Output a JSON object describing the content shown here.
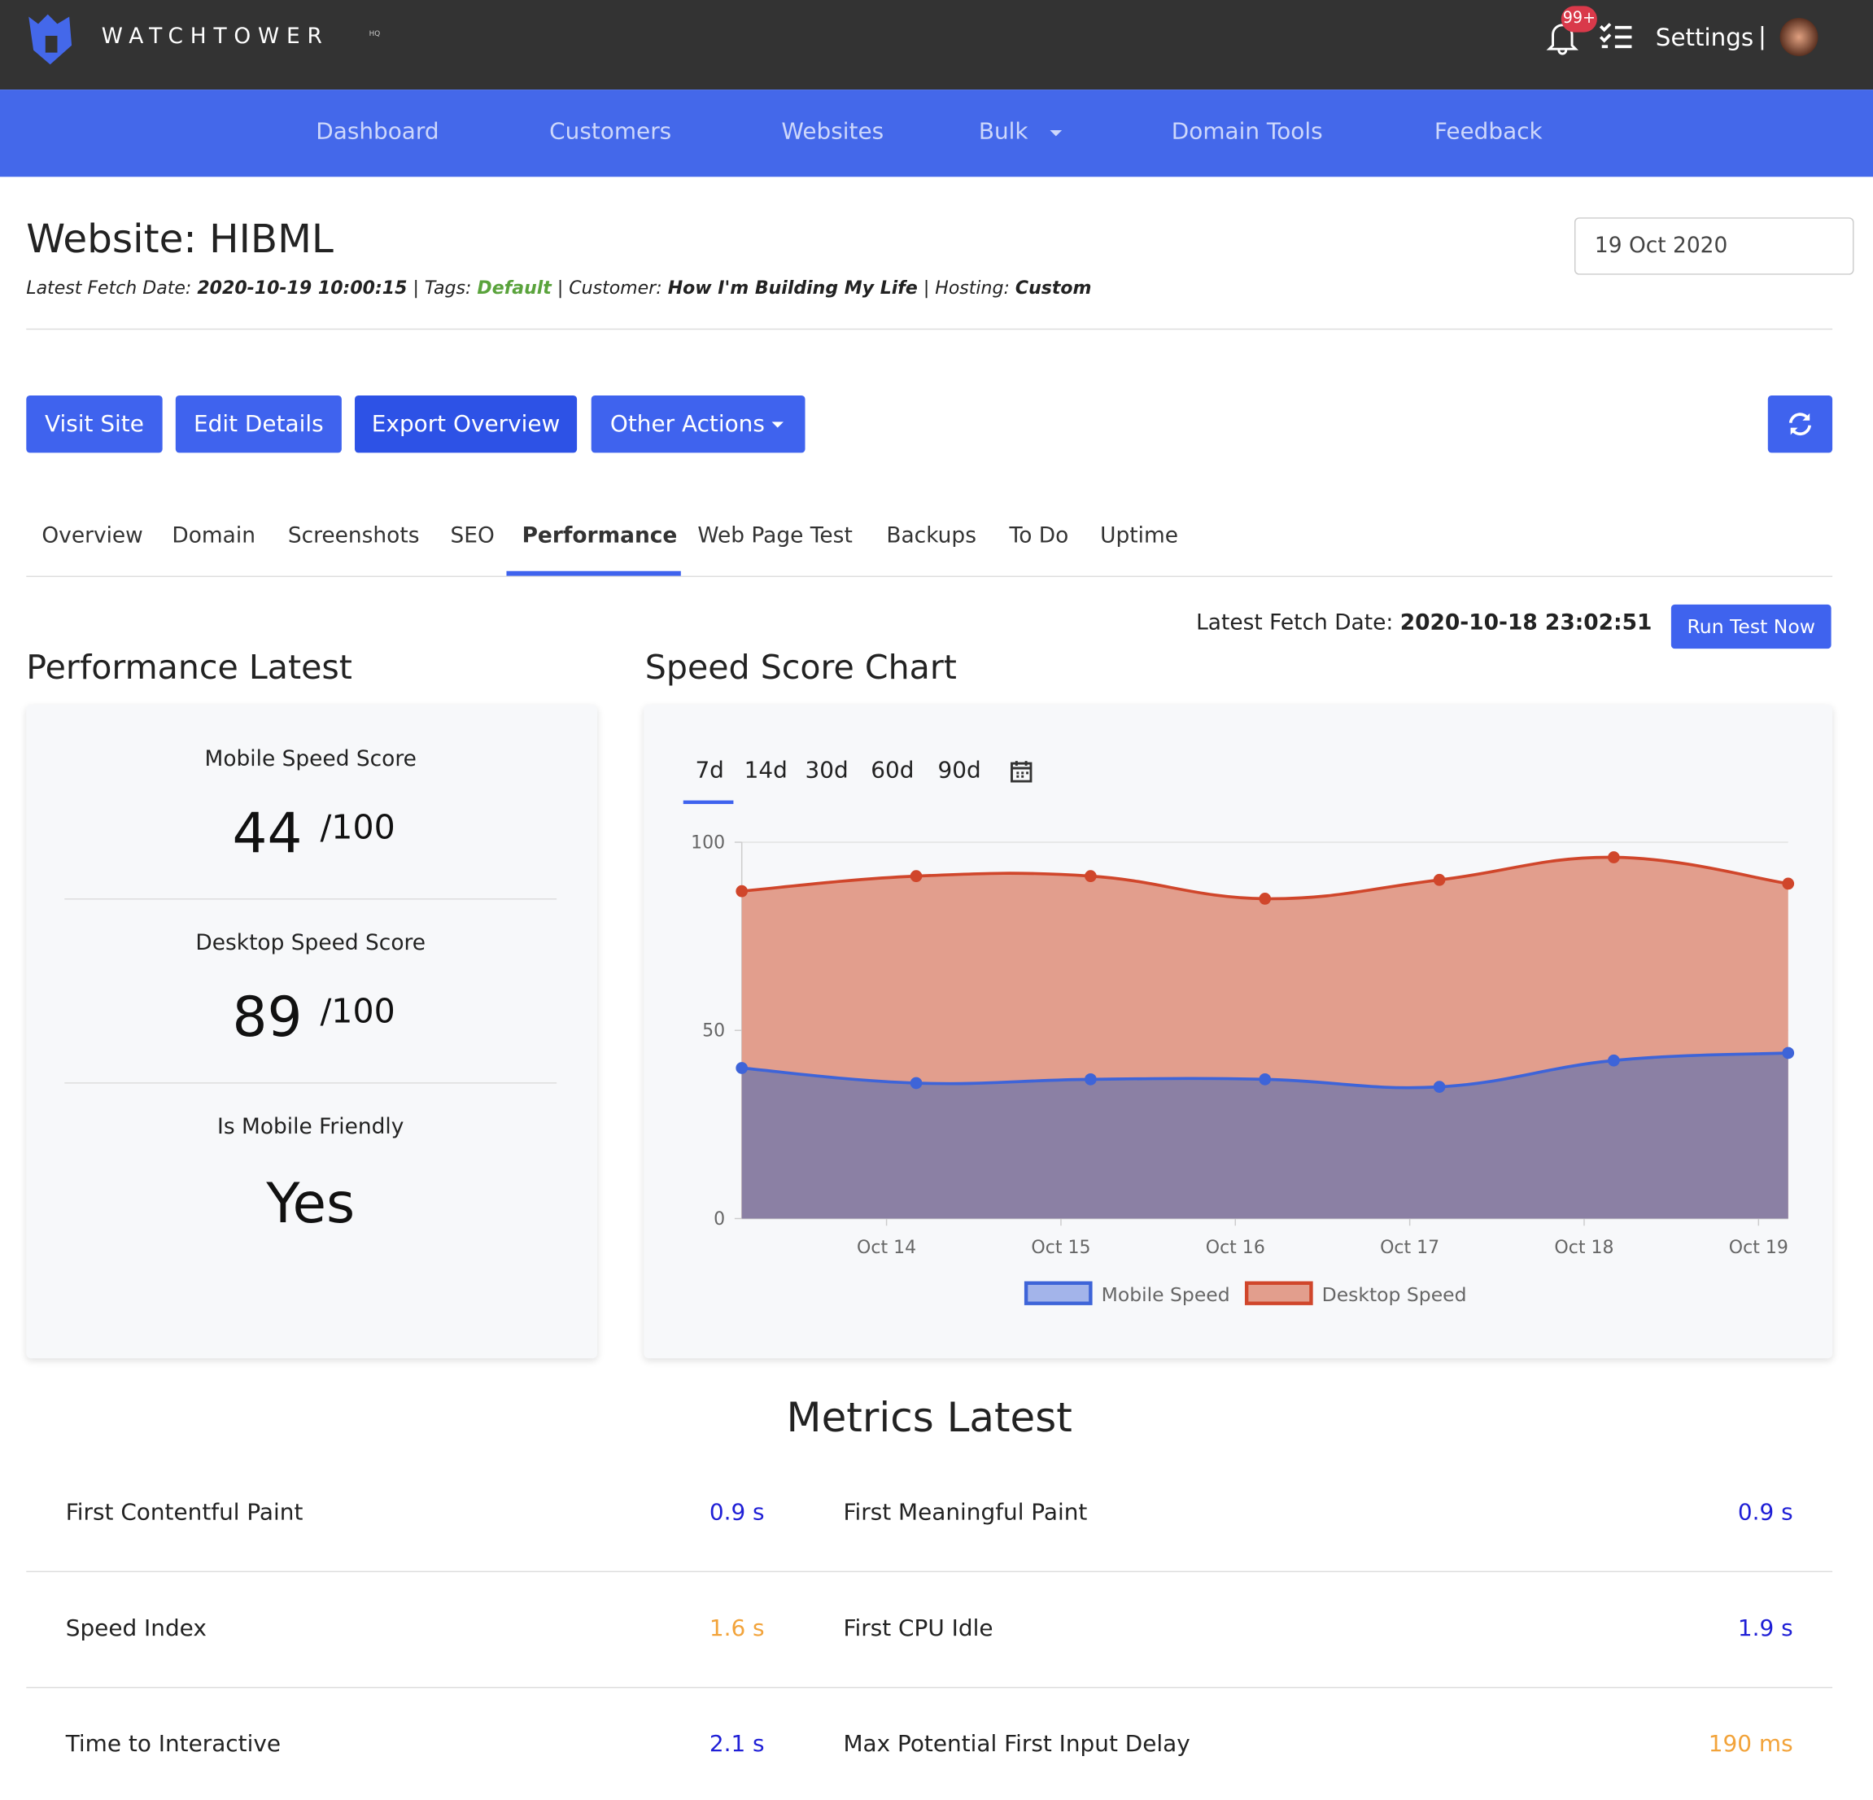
{
  "header": {
    "brand": "WATCHTOWER",
    "brand_sup": "HQ",
    "badge": "99+",
    "settings": "Settings",
    "separator": "|"
  },
  "nav": [
    "Dashboard",
    "Customers",
    "Websites",
    "Bulk",
    "Domain Tools",
    "Feedback"
  ],
  "website": {
    "title": "Website: HIBML",
    "date_input": "19 Oct 2020",
    "info": [
      {
        "label": "Latest Fetch Date:",
        "value": "2020-10-19 10:00:15"
      },
      {
        "label": "| Tags:",
        "value": "Default"
      },
      {
        "label": "| Customer:",
        "value": "How I'm Building My Life"
      },
      {
        "label": "| Hosting:",
        "value": "Custom"
      }
    ]
  },
  "buttons": [
    "Visit Site",
    "Edit Details",
    "Export Overview",
    "Other Actions"
  ],
  "tabs": [
    "Overview",
    "Domain",
    "Screenshots",
    "SEO",
    "Performance",
    "Web Page Test",
    "Backups",
    "To Do",
    "Uptime"
  ],
  "active_tab": 4,
  "fetch": {
    "label": "Latest Fetch Date:",
    "value": "2020-10-18 23:02:51",
    "button": "Run Test Now"
  },
  "performance": {
    "title": "Performance Latest",
    "scores": [
      {
        "label": "Mobile Speed Score",
        "value": 44,
        "suffix": "/100"
      },
      {
        "label": "Desktop Speed Score",
        "value": 89,
        "suffix": "/100"
      }
    ],
    "friendly": {
      "label": "Is Mobile Friendly",
      "value": "Yes"
    }
  },
  "chart_ranges": [
    "7d",
    "14d",
    "30d",
    "60d",
    "90d"
  ],
  "chart_data": {
    "type": "area",
    "title": "Speed Score Chart",
    "x": [
      13.17,
      14.17,
      15.17,
      16.17,
      17.17,
      18.17,
      19.17
    ],
    "xlim": [
      13.17,
      19.17
    ],
    "xticks": [
      {
        "value": 14,
        "label": "Oct 14"
      },
      {
        "value": 15,
        "label": "Oct 15"
      },
      {
        "value": 16,
        "label": "Oct 16"
      },
      {
        "value": 17,
        "label": "Oct 17"
      },
      {
        "value": 18,
        "label": "Oct 18"
      },
      {
        "value": 19,
        "label": "Oct 19"
      }
    ],
    "ylim": [
      0,
      100
    ],
    "yticks": [
      0,
      50,
      100
    ],
    "grid": true,
    "series": [
      {
        "name": "Mobile Speed",
        "color": "#3e64d8",
        "fill": "#8b80a4",
        "legend_fill": "#a3b4ea",
        "values": [
          40,
          36,
          37,
          37,
          35,
          42,
          44
        ]
      },
      {
        "name": "Desktop Speed",
        "color": "#d0462b",
        "fill": "#e29e8d",
        "legend_fill": "#e29e8d",
        "values": [
          87,
          91,
          91,
          85,
          90,
          96,
          89
        ]
      }
    ]
  },
  "metrics": {
    "title": "Metrics Latest",
    "items": [
      {
        "label": "First Contentful Paint",
        "value": "0.9 s",
        "color": "#1f1fd6"
      },
      {
        "label": "First Meaningful Paint",
        "value": "0.9 s",
        "color": "#1f1fd6"
      },
      {
        "label": "Speed Index",
        "value": "1.6 s",
        "color": "#f2a33a"
      },
      {
        "label": "First CPU Idle",
        "value": "1.9 s",
        "color": "#1f1fd6"
      },
      {
        "label": "Time to Interactive",
        "value": "2.1 s",
        "color": "#1f1fd6"
      },
      {
        "label": "Max Potential First Input Delay",
        "value": "190 ms",
        "color": "#f2a33a"
      }
    ]
  }
}
